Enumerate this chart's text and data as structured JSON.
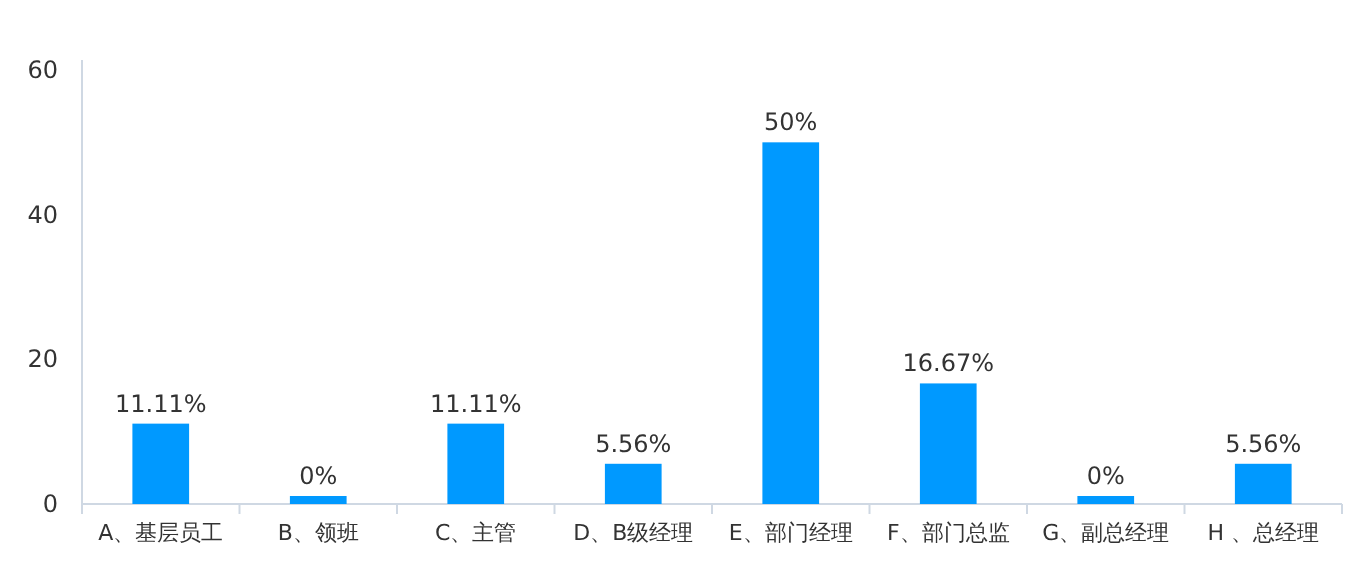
{
  "chart_data": {
    "type": "bar",
    "categories": [
      "A、基层员工",
      "B、领班",
      "C、主管",
      "D、B级经理",
      "E、部门经理",
      "F、部门总监",
      "G、副总经理",
      "H 、总经理"
    ],
    "values": [
      11.11,
      0,
      11.11,
      5.56,
      50,
      16.67,
      0,
      5.56
    ],
    "value_labels": [
      "11.11%",
      "0%",
      "11.11%",
      "5.56%",
      "50%",
      "16.67%",
      "0%",
      "5.56%"
    ],
    "color": "#0099ff",
    "ylim": [
      0,
      60
    ],
    "yticks": [
      0,
      20,
      40,
      60
    ],
    "grid": false
  }
}
